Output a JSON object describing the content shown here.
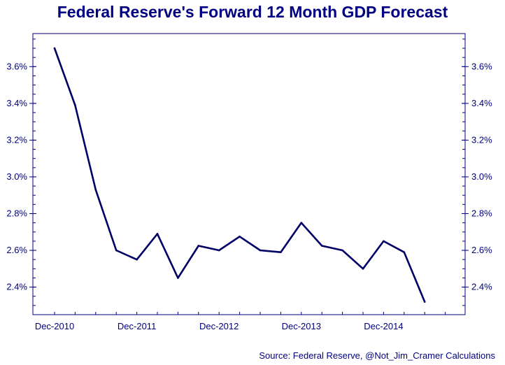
{
  "chart_data": {
    "type": "line",
    "title": "Federal Reserve's Forward 12 Month GDP Forecast",
    "xlabel": "",
    "ylabel": "",
    "source": "Source: Federal Reserve, @Not_Jim_Cramer Calculations",
    "x_tick_labels": [
      "Dec-2010",
      "Dec-2011",
      "Dec-2012",
      "Dec-2013",
      "Dec-2014"
    ],
    "y_tick_labels": [
      "2.4%",
      "2.6%",
      "2.8%",
      "3.0%",
      "3.2%",
      "3.4%",
      "3.6%"
    ],
    "y_ticks": [
      2.4,
      2.6,
      2.8,
      3.0,
      3.2,
      3.4,
      3.6
    ],
    "ylim": [
      2.25,
      3.78
    ],
    "x_index_range": [
      0,
      20
    ],
    "grid": false,
    "series": [
      {
        "name": "Forward 12 Month GDP Forecast",
        "color": "#000066",
        "values": [
          3.7,
          3.39,
          2.93,
          2.6,
          2.55,
          2.69,
          2.45,
          2.625,
          2.6,
          2.675,
          2.6,
          2.59,
          2.75,
          2.625,
          2.6,
          2.5,
          2.65,
          2.59,
          2.32
        ]
      }
    ]
  }
}
